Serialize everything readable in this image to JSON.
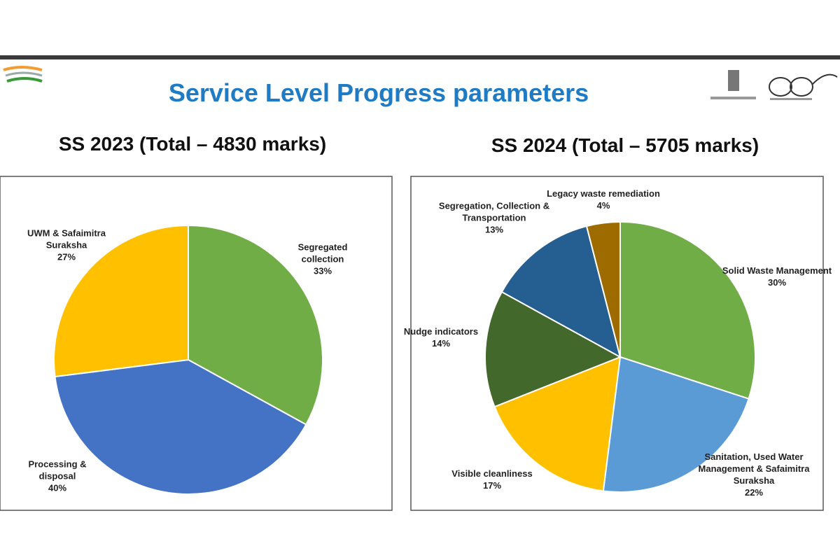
{
  "title": "Service Level Progress parameters",
  "chart_data": [
    {
      "type": "pie",
      "title": "SS 2023 (Total – 4830 marks)",
      "categories": [
        "Segregated collection",
        "Processing & disposal",
        "UWM & Safaimitra Suraksha"
      ],
      "values": [
        33,
        40,
        27
      ],
      "value_labels": [
        "33%",
        "40%",
        "27%"
      ],
      "colors": [
        "#70ad47",
        "#4472c4",
        "#ffc000"
      ]
    },
    {
      "type": "pie",
      "title": "SS 2024 (Total – 5705 marks)",
      "categories": [
        "Solid Waste Management",
        "Sanitation, Used Water Management & Safaimitra Suraksha",
        "Visible cleanliness",
        "Nudge indicators",
        "Segregation, Collection & Transportation",
        "Legacy waste remediation"
      ],
      "values": [
        30,
        22,
        17,
        14,
        13,
        4
      ],
      "value_labels": [
        "30%",
        "22%",
        "17%",
        "14%",
        "13%",
        "4%"
      ],
      "colors": [
        "#70ad47",
        "#5b9bd5",
        "#ffc000",
        "#43682b",
        "#255e91",
        "#9e6b00"
      ]
    }
  ]
}
